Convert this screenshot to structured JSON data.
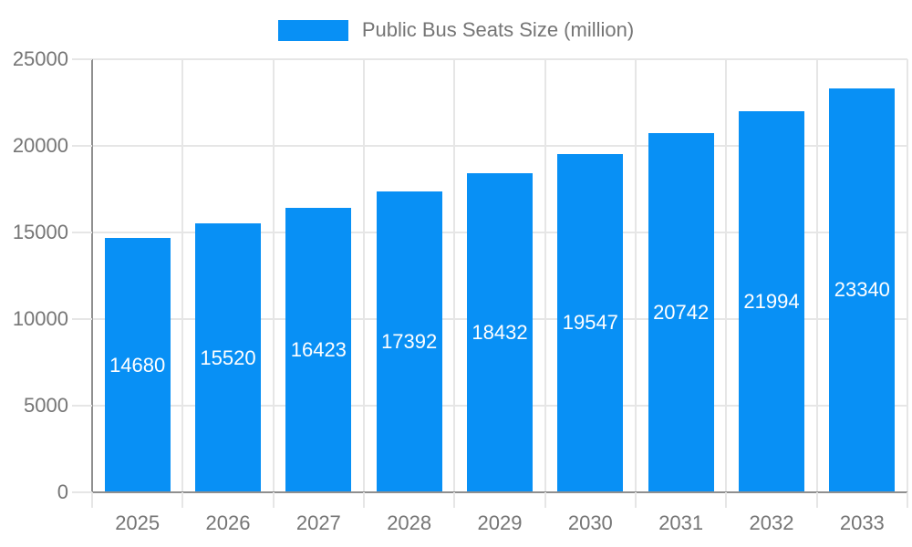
{
  "chart_data": {
    "type": "bar",
    "title": "Public Bus Seats Size (million)",
    "legend": [
      "Public Bus Seats Size (million)"
    ],
    "legend_position": "top-center",
    "categories": [
      "2025",
      "2026",
      "2027",
      "2028",
      "2029",
      "2030",
      "2031",
      "2032",
      "2033"
    ],
    "values": [
      14680,
      15520,
      16423,
      17392,
      18432,
      19547,
      20742,
      21994,
      23340
    ],
    "xlabel": "",
    "ylabel": "",
    "ylim": [
      0,
      25000
    ],
    "yticks": [
      0,
      5000,
      10000,
      15000,
      20000,
      25000
    ],
    "grid": true,
    "value_labels": "inside-bar-centered",
    "colors": {
      "bar": "#0890f5",
      "grid": "#e6e6e6",
      "axis": "#8f8f8f",
      "tick_label": "#757575",
      "value_label": "#ffffff"
    }
  }
}
